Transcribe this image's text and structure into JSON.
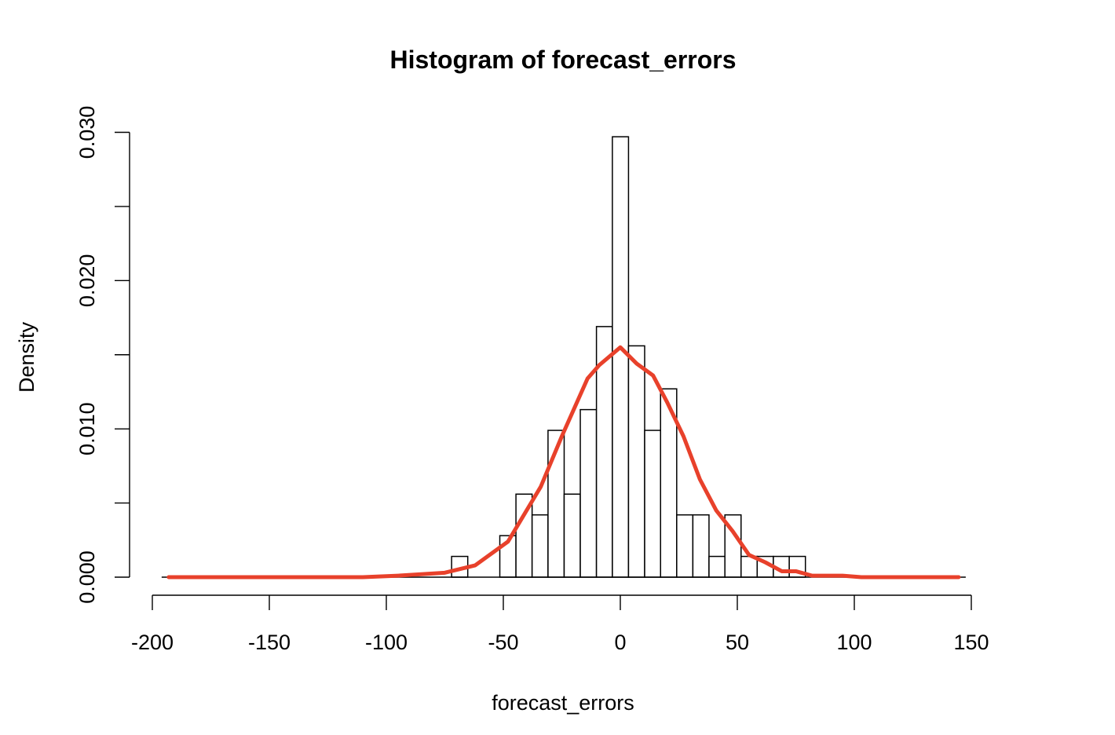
{
  "chart_data": {
    "type": "bar",
    "subtype": "histogram_with_density",
    "title": "Histogram of forecast_errors",
    "xlabel": "forecast_errors",
    "ylabel": "Density",
    "xlim": [
      -200,
      150
    ],
    "ylim": [
      0,
      0.03
    ],
    "x_ticks": [
      -200,
      -150,
      -100,
      -50,
      0,
      50,
      100,
      150
    ],
    "x_tick_labels": [
      "-200",
      "-150",
      "-100",
      "-50",
      "0",
      "50",
      "100",
      "150"
    ],
    "y_ticks": [
      0.0,
      0.005,
      0.01,
      0.015,
      0.02,
      0.025,
      0.03
    ],
    "y_tick_labels": [
      "0.000",
      "",
      "0.010",
      "",
      "0.020",
      "",
      "0.030"
    ],
    "grid": false,
    "legend": null,
    "bin_edges": [
      -72.1,
      -65.2,
      -58.4,
      -51.5,
      -44.6,
      -37.7,
      -30.9,
      -24.0,
      -17.1,
      -10.2,
      -3.4,
      3.5,
      10.4,
      17.2,
      24.1,
      31.0,
      37.9,
      44.7,
      51.6,
      58.5,
      65.4,
      72.2,
      79.1
    ],
    "bin_densities": [
      0.0014,
      0.0,
      0.0,
      0.0028,
      0.0056,
      0.0042,
      0.0099,
      0.0056,
      0.0113,
      0.0169,
      0.0297,
      0.0156,
      0.0099,
      0.0127,
      0.0042,
      0.0042,
      0.0014,
      0.0042,
      0.0014,
      0.0014,
      0.0014,
      0.0014
    ],
    "series": [
      {
        "name": "normal density overlay",
        "type": "line",
        "color": "#E8412B",
        "x": [
          -193,
          -150,
          -110,
          -95,
          -85,
          -75,
          -62,
          -48,
          -34,
          -25,
          -14,
          -9,
          0,
          7,
          14,
          20,
          27,
          34,
          41,
          48,
          55,
          62,
          69,
          75,
          82,
          95,
          103,
          120,
          144.6
        ],
        "y": [
          0.0,
          0.0,
          0.0,
          0.0001,
          0.0002,
          0.0003,
          0.0008,
          0.0024,
          0.0061,
          0.0095,
          0.0134,
          0.0143,
          0.0155,
          0.0144,
          0.0136,
          0.0118,
          0.0095,
          0.0066,
          0.0045,
          0.0031,
          0.0015,
          0.001,
          0.0004,
          0.0004,
          0.0001,
          0.0001,
          0.0,
          0.0,
          0.0
        ]
      }
    ]
  },
  "style": {
    "density_color": "#E8412B",
    "bar_fill": "#ffffff",
    "bar_stroke": "#000000"
  }
}
